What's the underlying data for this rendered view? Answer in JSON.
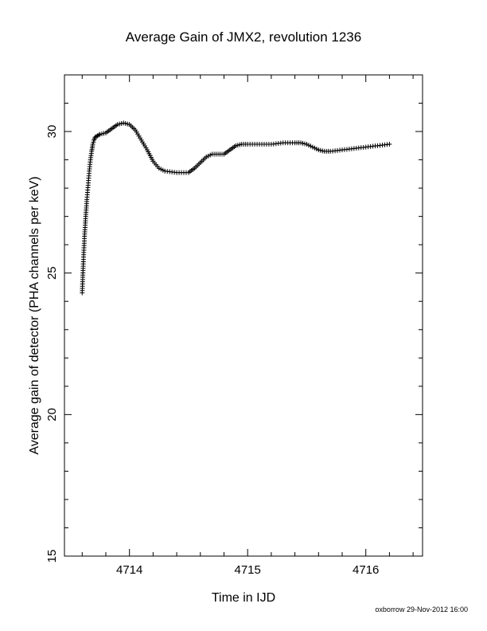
{
  "chart_data": {
    "type": "scatter",
    "title": "Average Gain of JMX2, revolution 1236",
    "xlabel": "Time in IJD",
    "ylabel": "Average gain of detector (PHA channels per keV)",
    "xlim": [
      4713.45,
      4716.48
    ],
    "ylim": [
      15,
      32
    ],
    "xticks": [
      4714,
      4715,
      4716
    ],
    "xtick_labels": [
      "4714",
      "4715",
      "4716"
    ],
    "yticks": [
      15,
      20,
      25,
      30
    ],
    "ytick_labels": [
      "15",
      "20",
      "25",
      "30"
    ],
    "grid": false,
    "marker": "plus",
    "series": [
      {
        "x": [
          4713.6,
          4713.61,
          4713.62,
          4713.63,
          4713.64,
          4713.65,
          4713.66,
          4713.67,
          4713.68,
          4713.69,
          4713.7,
          4713.71,
          4713.73,
          4713.75,
          4713.8,
          4713.85,
          4713.9,
          4713.95,
          4714.0,
          4714.05,
          4714.1,
          4714.15,
          4714.2,
          4714.25,
          4714.3,
          4714.4,
          4714.5,
          4714.55,
          4714.6,
          4714.65,
          4714.7,
          4714.75,
          4714.8,
          4714.85,
          4714.9,
          4714.95,
          4715.0,
          4715.1,
          4715.2,
          4715.3,
          4715.4,
          4715.45,
          4715.5,
          4715.55,
          4715.6,
          4715.65,
          4715.7,
          4715.8,
          4715.9,
          4716.0,
          4716.1,
          4716.2
        ],
        "y": [
          24.3,
          25.4,
          26.3,
          27.0,
          27.6,
          28.1,
          28.6,
          29.0,
          29.3,
          29.55,
          29.7,
          29.8,
          29.85,
          29.9,
          29.95,
          30.1,
          30.25,
          30.3,
          30.25,
          30.05,
          29.7,
          29.35,
          28.95,
          28.7,
          28.6,
          28.55,
          28.55,
          28.7,
          28.9,
          29.1,
          29.2,
          29.2,
          29.2,
          29.35,
          29.5,
          29.55,
          29.55,
          29.55,
          29.55,
          29.6,
          29.6,
          29.6,
          29.55,
          29.45,
          29.35,
          29.3,
          29.3,
          29.35,
          29.4,
          29.45,
          29.5,
          29.55
        ]
      }
    ]
  },
  "footer": {
    "credit": "oxborrow 29-Nov-2012 16:00"
  }
}
